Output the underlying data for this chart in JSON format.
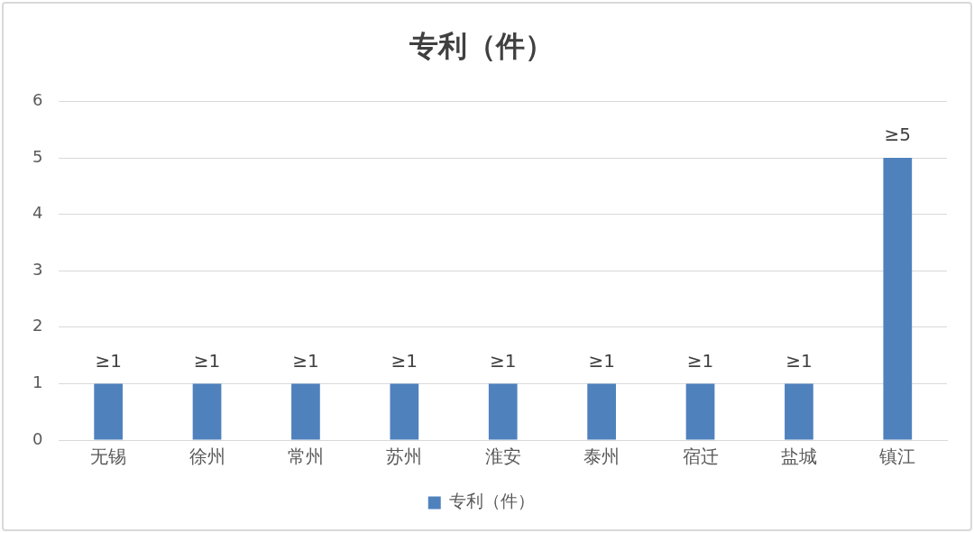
{
  "chart_data": {
    "type": "bar",
    "title": "专利（件）",
    "categories": [
      "无锡",
      "徐州",
      "常州",
      "苏州",
      "淮安",
      "泰州",
      "宿迁",
      "盐城",
      "镇江"
    ],
    "series": [
      {
        "name": "专利（件）",
        "color": "#4f81bd",
        "values": [
          1,
          1,
          1,
          1,
          1,
          1,
          1,
          1,
          5
        ],
        "value_labels": [
          "≥1",
          "≥1",
          "≥1",
          "≥1",
          "≥1",
          "≥1",
          "≥1",
          "≥1",
          "≥5"
        ]
      }
    ],
    "ylim": [
      0,
      6
    ],
    "yticks": [
      0,
      1,
      2,
      3,
      4,
      5,
      6
    ],
    "grid": "y",
    "legend": "bottom"
  }
}
